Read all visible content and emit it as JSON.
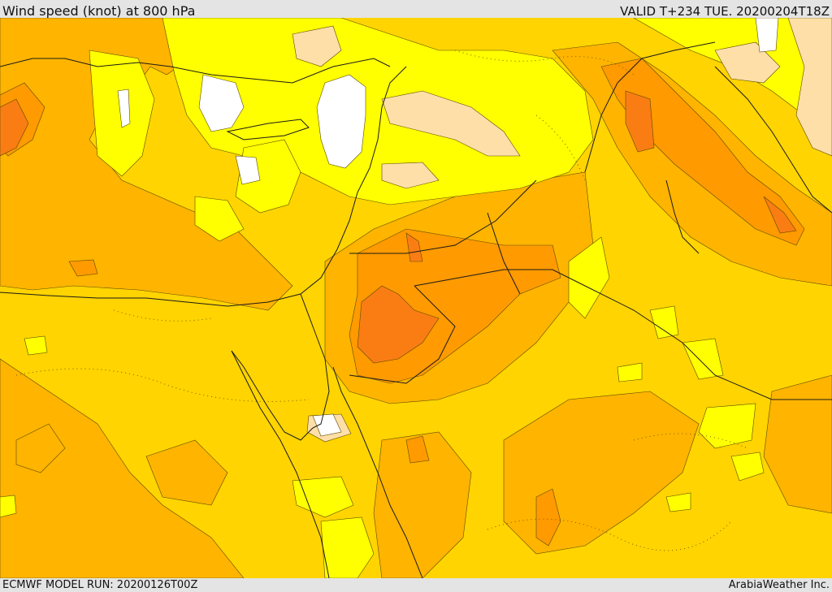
{
  "header": {
    "title": "Wind speed (knot) at 800 hPa",
    "valid": "VALID T+234 TUE. 20200204T18Z"
  },
  "footer": {
    "model_run": "ECMWF MODEL RUN: 20200126T00Z",
    "credit": "ArabiaWeather Inc."
  },
  "colors": {
    "base": "#ffd400",
    "light_yellow": "#ffff00",
    "peach": "#ffdfa8",
    "calm": "#ffffff",
    "light_orange": "#ffb400",
    "orange": "#ff9a00",
    "dark_orange": "#fa7d14",
    "boundary": "#1a1a1a"
  }
}
